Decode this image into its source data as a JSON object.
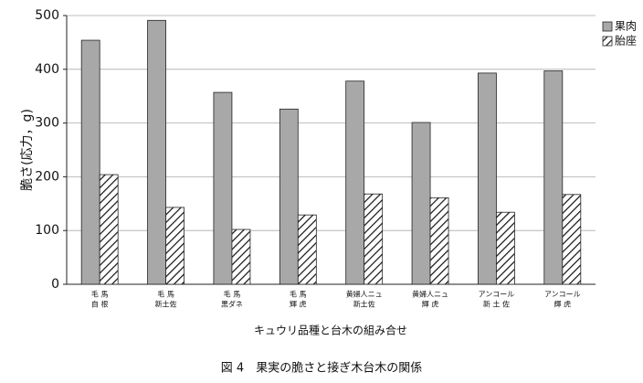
{
  "chart_data": {
    "type": "bar",
    "title": "図 4　果実の脆さと接ぎ木台木の関係",
    "x_label": "キュウリ品種と台木の組み合せ",
    "y_label": "脆さ(応力，g)",
    "categories": [
      [
        "毛 馬",
        "自 根"
      ],
      [
        "毛 馬",
        "新土佐"
      ],
      [
        "毛 馬",
        "黒ダネ"
      ],
      [
        "毛 馬",
        "輝 虎"
      ],
      [
        "黄婦人ニュ",
        "新土佐"
      ],
      [
        "黄婦人ニュ",
        "輝 虎"
      ],
      [
        "アンコール",
        "新 土 佐"
      ],
      [
        "アンコール",
        "輝 虎"
      ]
    ],
    "series": [
      {
        "name": "果肉",
        "color": "#a8a8a8",
        "hatch": false,
        "values": [
          454,
          491,
          357,
          326,
          378,
          301,
          393,
          397
        ]
      },
      {
        "name": "胎座",
        "color": "#ffffff",
        "hatch": true,
        "values": [
          204,
          143,
          102,
          129,
          168,
          161,
          134,
          167
        ]
      }
    ],
    "ylim": [
      0,
      500
    ],
    "yticks": [
      0,
      100,
      200,
      300,
      400,
      500
    ],
    "grid": true,
    "legend": "top-right"
  }
}
